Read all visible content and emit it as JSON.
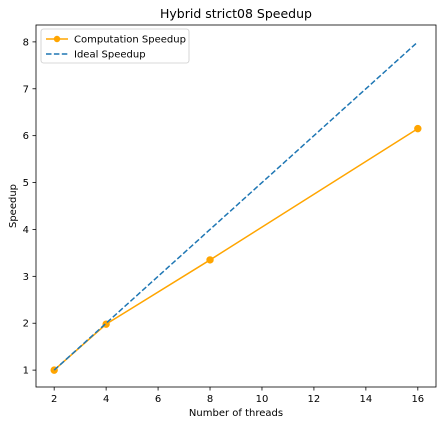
{
  "chart_data": {
    "type": "line",
    "title": "Hybrid strict08 Speedup",
    "xlabel": "Number of threads",
    "ylabel": "Speedup",
    "xlim": [
      1.3,
      16.7
    ],
    "ylim": [
      0.64,
      8.36
    ],
    "xticks": [
      2,
      4,
      6,
      8,
      10,
      12,
      14,
      16
    ],
    "yticks": [
      1,
      2,
      3,
      4,
      5,
      6,
      7,
      8
    ],
    "grid": false,
    "legend_position": "top-left",
    "series": [
      {
        "name": "Computation Speedup",
        "x": [
          2,
          4,
          8,
          16
        ],
        "y": [
          1.0,
          1.98,
          3.35,
          6.15
        ],
        "color": "#ffa500",
        "style": "solid",
        "marker": "circle"
      },
      {
        "name": "Ideal Speedup",
        "x": [
          2,
          4,
          8,
          16
        ],
        "y": [
          1,
          2,
          4,
          8
        ],
        "color": "#1f77b4",
        "style": "dashed",
        "marker": "none"
      }
    ]
  }
}
